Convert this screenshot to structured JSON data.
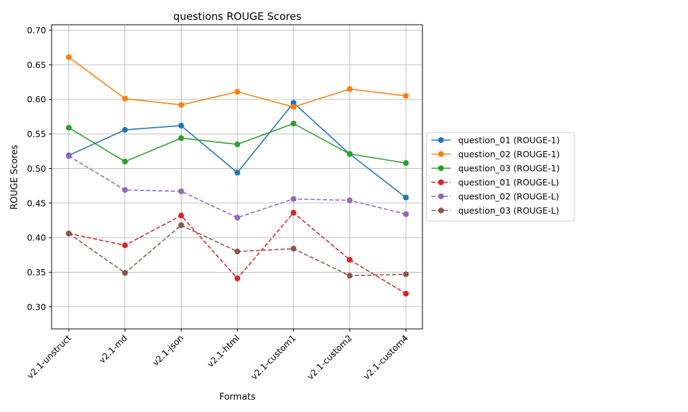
{
  "chart_data": {
    "type": "line",
    "title": "questions ROUGE Scores",
    "xlabel": "Formats",
    "ylabel": "ROUGE Scores",
    "categories": [
      "v2.1-unstruct",
      "v2.1-md",
      "v2.1-json",
      "v2.1-html",
      "v2.1-custom1",
      "v2.1-custom2",
      "v2.1-custom4"
    ],
    "ylim": [
      0.268,
      0.708
    ],
    "yticks": [
      "0.30",
      "0.35",
      "0.40",
      "0.45",
      "0.50",
      "0.55",
      "0.60",
      "0.65",
      "0.70"
    ],
    "grid": true,
    "legend_position": "outside-right",
    "series": [
      {
        "name": "question_01 (ROUGE-1)",
        "color": "#1f77b4",
        "dash": "solid",
        "values": [
          0.519,
          0.556,
          0.562,
          0.494,
          0.595,
          0.521,
          0.458
        ]
      },
      {
        "name": "question_02 (ROUGE-1)",
        "color": "#ff7f0e",
        "dash": "solid",
        "values": [
          0.661,
          0.601,
          0.592,
          0.611,
          0.589,
          0.615,
          0.605
        ]
      },
      {
        "name": "question_03 (ROUGE-1)",
        "color": "#2ca02c",
        "dash": "solid",
        "values": [
          0.559,
          0.51,
          0.544,
          0.535,
          0.565,
          0.521,
          0.508
        ]
      },
      {
        "name": "question_01 (ROUGE-L)",
        "color": "#d62728",
        "dash": "dashed",
        "values": [
          0.406,
          0.389,
          0.432,
          0.341,
          0.436,
          0.368,
          0.319
        ]
      },
      {
        "name": "question_02 (ROUGE-L)",
        "color": "#9467bd",
        "dash": "dashed",
        "values": [
          0.518,
          0.469,
          0.467,
          0.429,
          0.456,
          0.454,
          0.434
        ]
      },
      {
        "name": "question_03 (ROUGE-L)",
        "color": "#8c564b",
        "dash": "dashed",
        "values": [
          0.406,
          0.349,
          0.418,
          0.38,
          0.384,
          0.345,
          0.347
        ]
      }
    ]
  }
}
